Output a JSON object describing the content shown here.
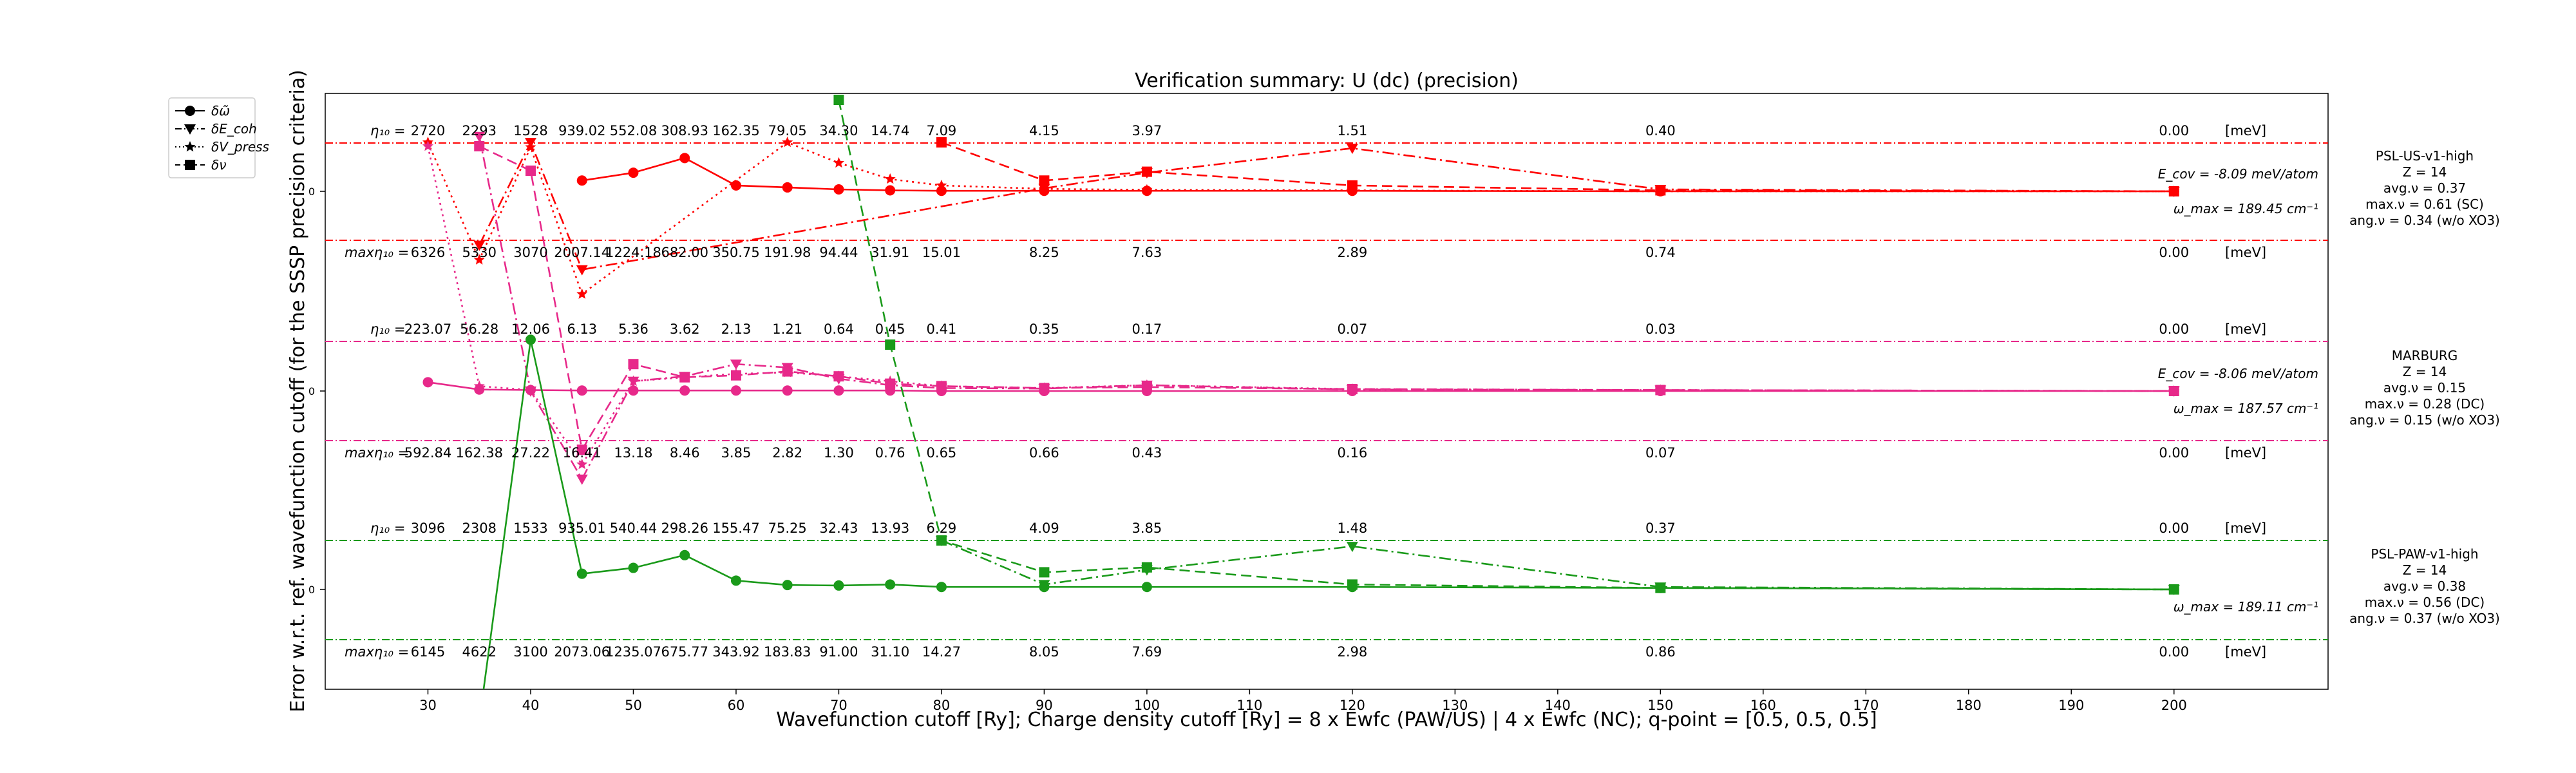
{
  "chart_data": {
    "type": "line",
    "title": "Verification summary: U (dc) (precision)",
    "xlabel": "Wavefunction cutoff [Ry]; Charge density cutoff [Ry] = 8 x Ewfc (PAW/US) | 4 x Ewfc (NC); q-point = [0.5, 0.5, 0.5]",
    "ylabel": "Error w.r.t. ref. wavefunction cutoff (for the SSSP precision criteria)",
    "xlim": [
      20,
      215
    ],
    "xticks": [
      30,
      40,
      50,
      60,
      70,
      80,
      90,
      100,
      110,
      120,
      130,
      140,
      150,
      160,
      170,
      180,
      190,
      200
    ],
    "ytick_label": "0",
    "legend": [
      {
        "label": "δω̃",
        "style": "solid",
        "marker": "circle"
      },
      {
        "label": "δE_coh",
        "style": "dashdot",
        "marker": "triangle-down"
      },
      {
        "label": "δV_press",
        "style": "dotted",
        "marker": "star"
      },
      {
        "label": "δν",
        "style": "dashed",
        "marker": "square"
      }
    ],
    "legend_position": "upper-left, outside axes",
    "cutoffs": [
      30,
      35,
      40,
      45,
      50,
      55,
      60,
      65,
      70,
      75,
      80,
      90,
      100,
      120,
      150,
      200
    ],
    "unit_label": "[meV]",
    "panels": [
      {
        "name": "PSL-US-v1-high",
        "color": "#ff0000",
        "info": [
          "PSL-US-v1-high",
          "Z = 14",
          "avg.ν = 0.37",
          "max.ν = 0.61 (SC)",
          "ang.ν = 0.34 (w/o XO3)"
        ],
        "ecoh_label": "E_cov = -8.09 meV/atom",
        "omega_label": "ω_max = 189.45 cm⁻¹",
        "eta_label": "η₁₀ =",
        "maxeta_label": "maxη₁₀ =",
        "eta_row": [
          "2720",
          "2293",
          "1528",
          "939.02",
          "552.08",
          "308.93",
          "162.35",
          "79.05",
          "34.30",
          "14.74",
          "7.09",
          "4.15",
          "3.97",
          "1.51",
          "0.40",
          "0.00"
        ],
        "maxeta_row": [
          "6326",
          "5330",
          "3070",
          "2007.14",
          "1224.18",
          "682.00",
          "350.75",
          "191.98",
          "94.44",
          "31.91",
          "15.01",
          "8.25",
          "7.63",
          "2.89",
          "0.74",
          "0.00"
        ],
        "series": {
          "omega": {
            "x": [
              45,
              50,
              55,
              60,
              65,
              70,
              75,
              80,
              90,
              100,
              120,
              150,
              200
            ],
            "y": [
              0.22,
              0.38,
              0.68,
              0.12,
              0.08,
              0.04,
              0.02,
              0.01,
              0.01,
              0.01,
              0.01,
              0.0,
              0.0
            ]
          },
          "ecoh": {
            "x": [
              35,
              40,
              45,
              90,
              100,
              120,
              150,
              200
            ],
            "y": [
              -1.1,
              1.0,
              -1.6,
              0.06,
              0.38,
              0.88,
              0.04,
              0.0
            ]
          },
          "vpress": {
            "x": [
              30,
              35,
              40,
              45,
              65,
              70,
              75,
              80,
              90,
              100,
              120,
              150,
              200
            ],
            "y": [
              1.0,
              -1.4,
              0.9,
              -2.1,
              1.0,
              0.58,
              0.25,
              0.12,
              0.05,
              0.03,
              0.02,
              0.0,
              0.0
            ]
          },
          "nu": {
            "x": [
              80,
              90,
              100,
              120,
              150,
              200
            ],
            "y": [
              1.0,
              0.22,
              0.4,
              0.12,
              0.02,
              0.0
            ]
          }
        }
      },
      {
        "name": "MARBURG",
        "color": "#e7298a",
        "info": [
          "MARBURG",
          "Z = 14",
          "avg.ν = 0.15",
          "max.ν = 0.28 (DC)",
          "ang.ν = 0.15 (w/o XO3)"
        ],
        "ecoh_label": "E_cov = -8.06 meV/atom",
        "omega_label": "ω_max = 187.57 cm⁻¹",
        "eta_label": "η₁₀ =",
        "maxeta_label": "maxη₁₀ =",
        "eta_row": [
          "223.07",
          "56.28",
          "12.06",
          "6.13",
          "5.36",
          "3.62",
          "2.13",
          "1.21",
          "0.64",
          "0.45",
          "0.41",
          "0.35",
          "0.17",
          "0.07",
          "0.03",
          "0.00"
        ],
        "maxeta_row": [
          "592.84",
          "162.38",
          "27.22",
          "16.41",
          "13.18",
          "8.46",
          "3.85",
          "2.82",
          "1.30",
          "0.76",
          "0.65",
          "0.66",
          "0.43",
          "0.16",
          "0.07",
          "0.00"
        ],
        "series": {
          "omega": {
            "x": [
              30,
              35,
              40,
              45,
              50,
              55,
              60,
              65,
              70,
              75,
              80,
              90,
              100,
              120,
              150,
              200
            ],
            "y": [
              0.18,
              0.03,
              0.02,
              0.01,
              0.01,
              0.01,
              0.01,
              0.01,
              0.01,
              0.01,
              0.0,
              0.0,
              0.0,
              0.0,
              0.0,
              0.0
            ]
          },
          "ecoh": {
            "x": [
              35,
              40,
              45,
              50,
              55,
              60,
              65,
              70,
              75,
              80,
              90,
              100,
              120,
              150,
              200
            ],
            "y": [
              5.2,
              0.0,
              -1.8,
              0.2,
              0.3,
              0.55,
              0.48,
              0.25,
              0.12,
              0.06,
              0.05,
              0.12,
              0.03,
              0.02,
              0.0
            ]
          },
          "vpress": {
            "x": [
              30,
              35,
              40,
              45,
              50,
              55,
              60,
              65,
              70,
              75,
              80,
              90,
              100,
              120,
              150,
              200
            ],
            "y": [
              5.0,
              0.1,
              0.02,
              -1.5,
              0.2,
              0.28,
              0.35,
              0.38,
              0.3,
              0.2,
              0.1,
              0.06,
              0.12,
              0.04,
              0.02,
              0.0
            ]
          },
          "nu": {
            "x": [
              35,
              40,
              45,
              50,
              55,
              60,
              65,
              70,
              75,
              80,
              90,
              100,
              120,
              150,
              200
            ],
            "y": [
              5.0,
              4.5,
              -1.2,
              0.55,
              0.28,
              0.32,
              0.4,
              0.3,
              0.15,
              0.1,
              0.06,
              0.08,
              0.04,
              0.02,
              0.0
            ]
          }
        }
      },
      {
        "name": "PSL-PAW-v1-high",
        "color": "#1a9a1a",
        "info": [
          "PSL-PAW-v1-high",
          "Z = 14",
          "avg.ν = 0.38",
          "max.ν = 0.56 (DC)",
          "ang.ν = 0.37 (w/o XO3)"
        ],
        "ecoh_label": "",
        "omega_label": "ω_max = 189.11 cm⁻¹",
        "eta_label": "η₁₀ =",
        "maxeta_label": "maxη₁₀ =",
        "eta_row": [
          "3096",
          "2308",
          "1533",
          "935.01",
          "540.44",
          "298.26",
          "155.47",
          "75.25",
          "32.43",
          "13.93",
          "6.29",
          "4.09",
          "3.85",
          "1.48",
          "0.37",
          "0.00"
        ],
        "maxeta_row": [
          "6145",
          "4622",
          "3100",
          "2073.06",
          "1235.07",
          "675.77",
          "343.92",
          "183.83",
          "91.00",
          "31.10",
          "14.27",
          "8.05",
          "7.69",
          "2.98",
          "0.86",
          "0.00"
        ],
        "series": {
          "omega": {
            "x": [
              35,
              40,
              45,
              50,
              55,
              60,
              65,
              70,
              75,
              80,
              90,
              100,
              120,
              150,
              200
            ],
            "y": [
              -2.7,
              5.1,
              0.32,
              0.44,
              0.7,
              0.18,
              0.09,
              0.08,
              0.1,
              0.05,
              0.05,
              0.05,
              0.05,
              0.03,
              0.0
            ]
          },
          "ecoh": {
            "x": [
              80,
              90,
              100,
              120,
              150,
              200
            ],
            "y": [
              1.0,
              0.1,
              0.4,
              0.88,
              0.05,
              0.0
            ]
          },
          "vpress": {
            "x": [],
            "y": []
          },
          "nu": {
            "x": [
              70,
              75,
              80,
              90,
              100,
              120,
              150,
              200
            ],
            "y": [
              10,
              5.0,
              1.0,
              0.35,
              0.45,
              0.1,
              0.03,
              0.0
            ]
          }
        }
      }
    ]
  }
}
